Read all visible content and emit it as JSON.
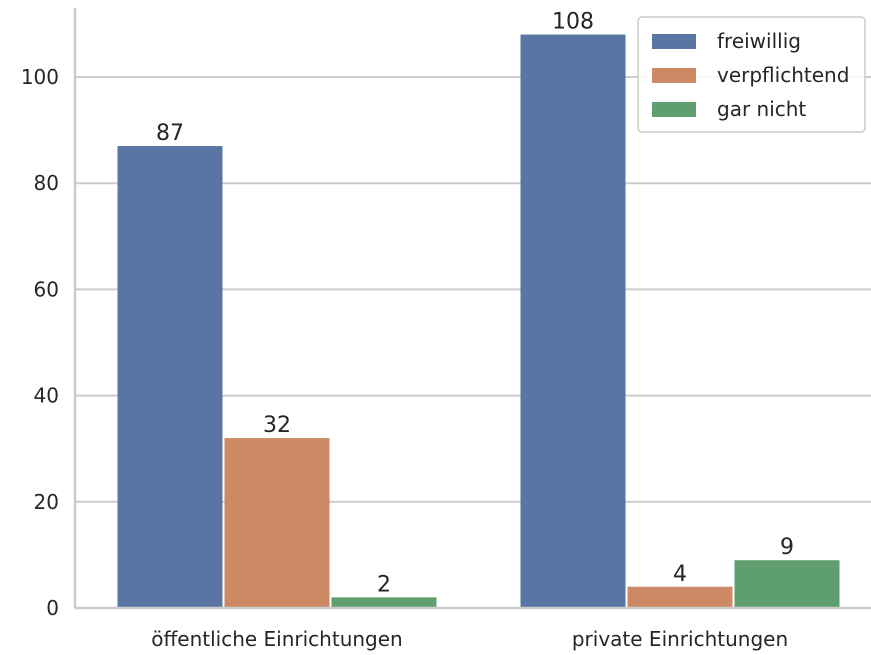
{
  "chart_data": {
    "type": "bar",
    "title": "",
    "xlabel": "",
    "ylabel": "",
    "categories": [
      "öffentliche Einrichtungen",
      "private Einrichtungen"
    ],
    "series": [
      {
        "name": "freiwillig",
        "values": [
          87,
          108
        ],
        "color": "#5975A4"
      },
      {
        "name": "verpflichtend",
        "values": [
          32,
          4
        ],
        "color": "#CC8963"
      },
      {
        "name": "gar nicht",
        "values": [
          2,
          9
        ],
        "color": "#5F9E6E"
      }
    ],
    "ylim": [
      0,
      113
    ],
    "yticks": [
      0,
      20,
      40,
      60,
      80,
      100
    ],
    "grid": "horizontal",
    "legend_position": "top-right",
    "data_labels": true
  }
}
